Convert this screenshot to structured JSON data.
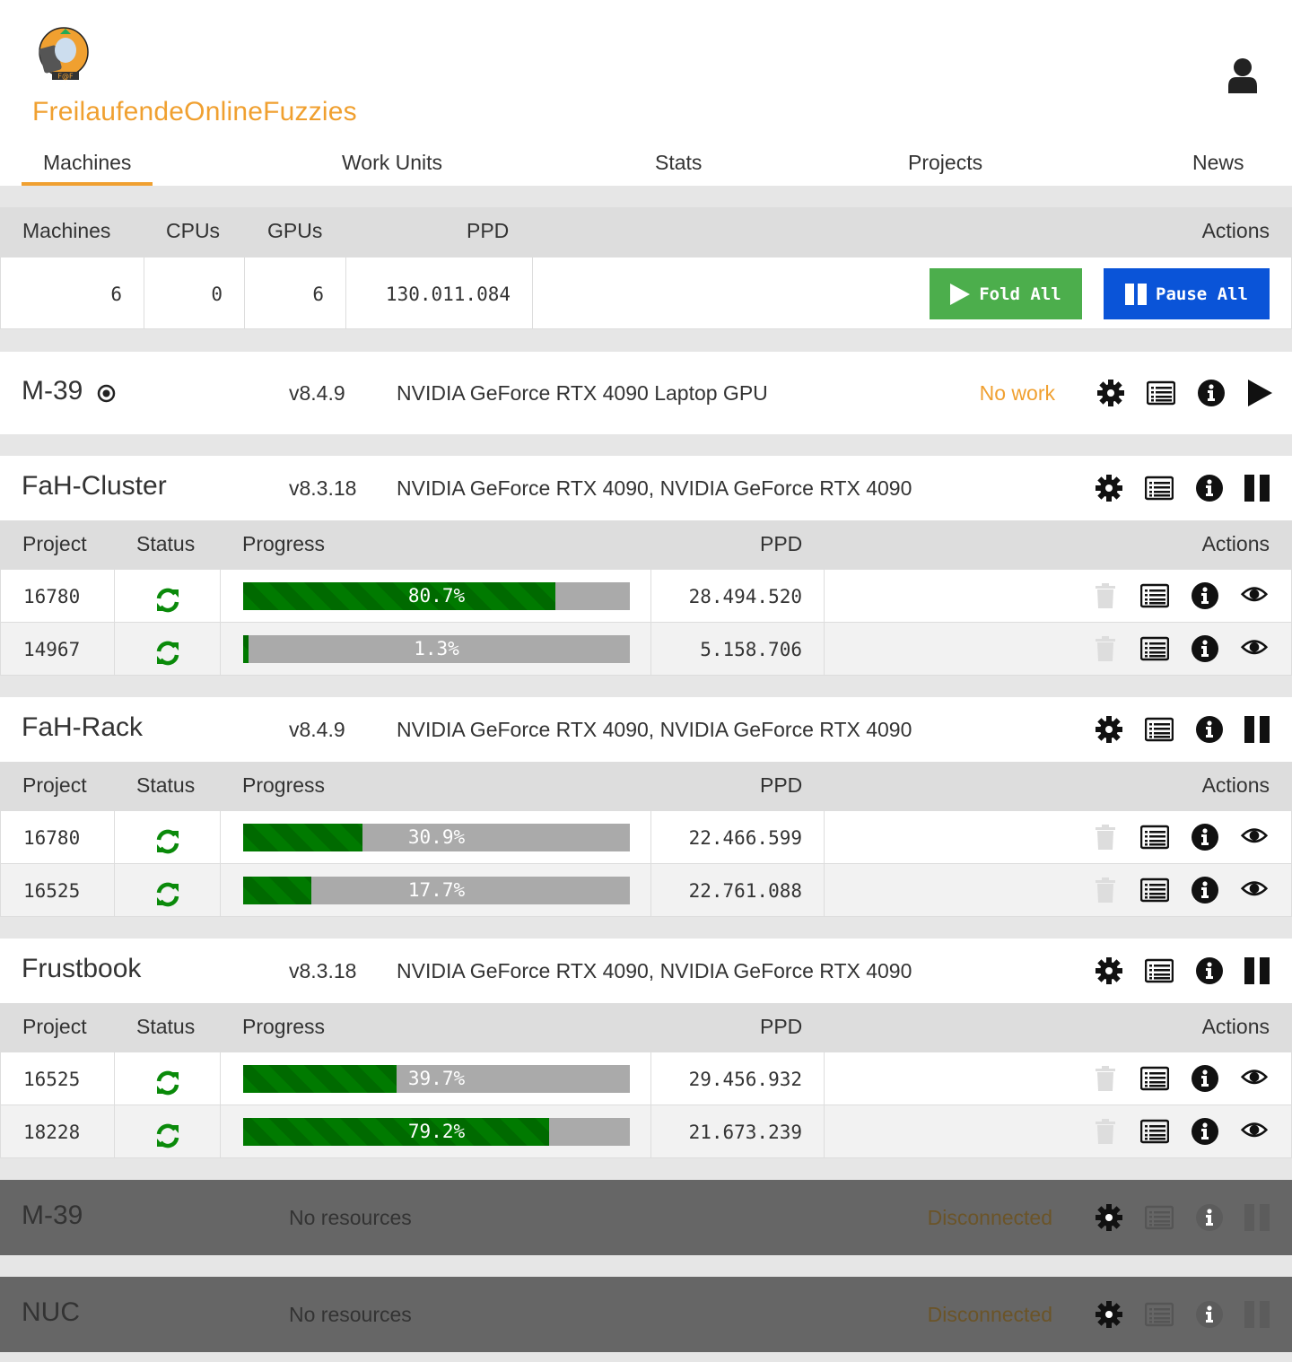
{
  "brand": {
    "name": "FreilaufendeOnlineFuzzies",
    "logo_text": "F@F"
  },
  "nav": {
    "tabs": [
      {
        "label": "Machines",
        "active": true
      },
      {
        "label": "Work Units"
      },
      {
        "label": "Stats"
      },
      {
        "label": "Projects"
      },
      {
        "label": "News"
      }
    ]
  },
  "summary": {
    "headers": {
      "machines": "Machines",
      "cpus": "CPUs",
      "gpus": "GPUs",
      "ppd": "PPD",
      "actions": "Actions"
    },
    "values": {
      "machines": "6",
      "cpus": "0",
      "gpus": "6",
      "ppd": "130.011.084"
    },
    "fold_all": "Fold All",
    "pause_all": "Pause All"
  },
  "colors": {
    "accent": "#f0a030",
    "fold": "#4cae4c",
    "pause": "#0a54d8",
    "progress": "#007a00"
  },
  "wu_headers": {
    "project": "Project",
    "status": "Status",
    "progress": "Progress",
    "ppd": "PPD",
    "actions": "Actions"
  },
  "machines": [
    {
      "name": "M-39",
      "has_target_icon": true,
      "version": "v8.4.9",
      "gpus": "NVIDIA GeForce RTX 4090 Laptop GPU",
      "status": "No work",
      "state": "idle",
      "units": []
    },
    {
      "name": "FaH-Cluster",
      "version": "v8.3.18",
      "gpus": "NVIDIA GeForce RTX 4090, NVIDIA GeForce RTX 4090",
      "state": "running",
      "units": [
        {
          "project": "16780",
          "progress": 80.7,
          "progress_label": "80.7%",
          "ppd": "28.494.520"
        },
        {
          "project": "14967",
          "progress": 1.3,
          "progress_label": "1.3%",
          "ppd": "5.158.706"
        }
      ]
    },
    {
      "name": "FaH-Rack",
      "version": "v8.4.9",
      "gpus": "NVIDIA GeForce RTX 4090, NVIDIA GeForce RTX 4090",
      "state": "running",
      "units": [
        {
          "project": "16780",
          "progress": 30.9,
          "progress_label": "30.9%",
          "ppd": "22.466.599"
        },
        {
          "project": "16525",
          "progress": 17.7,
          "progress_label": "17.7%",
          "ppd": "22.761.088"
        }
      ]
    },
    {
      "name": "Frustbook",
      "version": "v8.3.18",
      "gpus": "NVIDIA GeForce RTX 4090, NVIDIA GeForce RTX 4090",
      "state": "running",
      "units": [
        {
          "project": "16525",
          "progress": 39.7,
          "progress_label": "39.7%",
          "ppd": "29.456.932"
        },
        {
          "project": "18228",
          "progress": 79.2,
          "progress_label": "79.2%",
          "ppd": "21.673.239"
        }
      ]
    },
    {
      "name": "M-39",
      "version": "No resources",
      "gpus": "",
      "status": "Disconnected",
      "state": "disconnected",
      "units": []
    },
    {
      "name": "NUC",
      "version": "No resources",
      "gpus": "",
      "status": "Disconnected",
      "state": "disconnected",
      "units": []
    }
  ]
}
